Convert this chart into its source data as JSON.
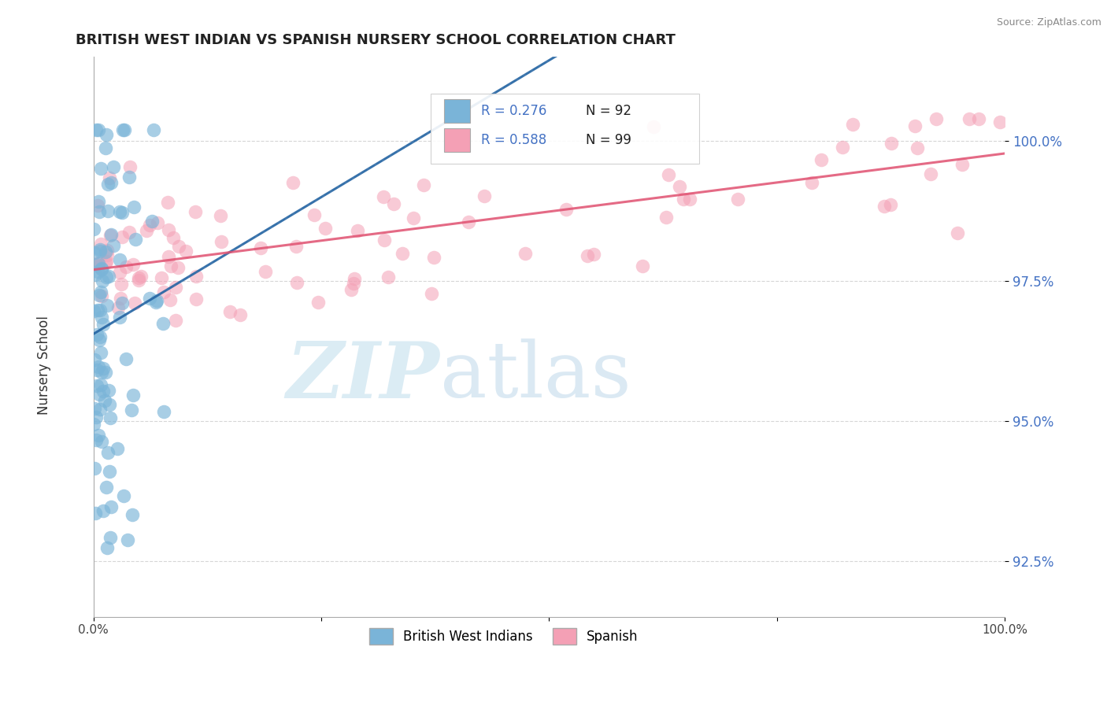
{
  "title": "BRITISH WEST INDIAN VS SPANISH NURSERY SCHOOL CORRELATION CHART",
  "source": "Source: ZipAtlas.com",
  "ylabel": "Nursery School",
  "yticks": [
    92.5,
    95.0,
    97.5,
    100.0
  ],
  "ytick_labels": [
    "92.5%",
    "95.0%",
    "97.5%",
    "100.0%"
  ],
  "xlim": [
    0,
    100
  ],
  "ylim": [
    91.5,
    101.5
  ],
  "legend_r1": "R = 0.276",
  "legend_n1": "N = 92",
  "legend_r2": "R = 0.588",
  "legend_n2": "N = 99",
  "color_blue": "#7ab4d8",
  "color_pink": "#f4a0b5",
  "color_blue_line": "#2060a0",
  "color_pink_line": "#e05070",
  "color_ytick": "#4472c4",
  "background": "#ffffff"
}
